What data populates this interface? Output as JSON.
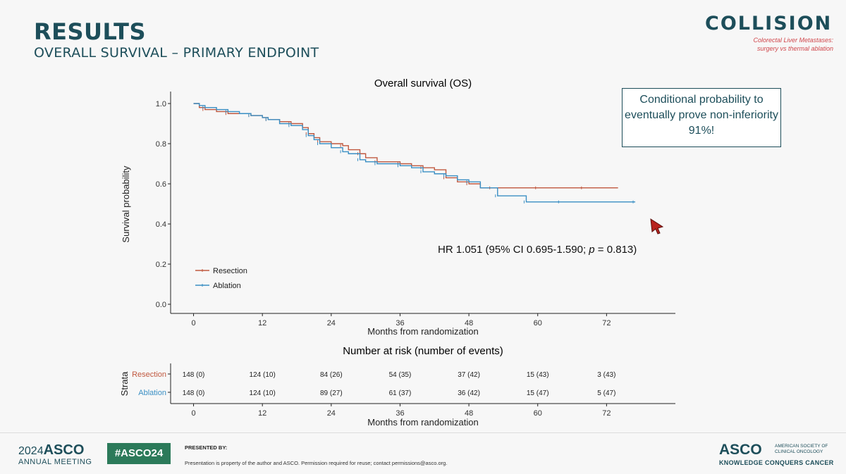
{
  "header": {
    "title": "RESULTS",
    "subtitle": "OVERALL SURVIVAL – PRIMARY ENDPOINT"
  },
  "logo": {
    "word": "COLLISION",
    "line1": "Colorectal Liver Metastases:",
    "line2": "surgery vs thermal ablation"
  },
  "callout": {
    "text": "Conditional probability to eventually prove non-inferiority 91%!"
  },
  "hr": {
    "prefix": "HR 1.051 (95% CI 0.695-1.590; ",
    "p_italic": "p",
    "suffix": " = 0.813)"
  },
  "footer": {
    "asco_year": "2024",
    "asco_word": "ASCO",
    "asco_sub": "ANNUAL MEETING",
    "hashtag": "#ASCO24",
    "presented_by": "PRESENTED BY:",
    "disclaimer": "Presentation is property of the author and ASCO. Permission required for reuse; contact permissions@asco.org.",
    "asco_right": "ASCO",
    "asco_right_sub1": "AMERICAN SOCIETY OF CLINICAL ONCOLOGY",
    "asco_right_sub2": "KNOWLEDGE CONQUERS CANCER"
  },
  "colors": {
    "resection": "#c0583f",
    "ablation": "#3a8fc4",
    "accent": "#1d4e5a"
  },
  "chart_data": [
    {
      "type": "line",
      "title": "Overall survival (OS)",
      "xlabel": "Months from randomization",
      "ylabel": "Survival probability",
      "xticks": [
        0,
        12,
        24,
        36,
        48,
        60,
        72
      ],
      "yticks": [
        "0.0",
        "0.2",
        "0.4",
        "0.6",
        "0.8",
        "1.0"
      ],
      "xlim": [
        -4,
        84
      ],
      "ylim": [
        0,
        1
      ],
      "legend_position": "bottom-left",
      "series": [
        {
          "name": "Resection",
          "color_key": "resection",
          "x": [
            0,
            1,
            2,
            4,
            6,
            8,
            10,
            12,
            13,
            15,
            17,
            19,
            20,
            21,
            22,
            24,
            26,
            27,
            29,
            30,
            32,
            34,
            36,
            38,
            40,
            42,
            44,
            46,
            48,
            50,
            52,
            56,
            60,
            64,
            68,
            74
          ],
          "y": [
            1.0,
            0.98,
            0.97,
            0.96,
            0.95,
            0.95,
            0.94,
            0.93,
            0.92,
            0.91,
            0.9,
            0.88,
            0.85,
            0.83,
            0.81,
            0.8,
            0.79,
            0.77,
            0.75,
            0.73,
            0.71,
            0.71,
            0.7,
            0.69,
            0.68,
            0.67,
            0.63,
            0.61,
            0.6,
            0.58,
            0.58,
            0.58,
            0.58,
            0.58,
            0.58,
            0.58
          ]
        },
        {
          "name": "Ablation",
          "color_key": "ablation",
          "x": [
            0,
            1,
            2,
            4,
            6,
            8,
            10,
            12,
            13,
            15,
            17,
            19,
            20,
            21,
            22,
            24,
            26,
            27,
            29,
            30,
            32,
            34,
            36,
            38,
            40,
            42,
            44,
            46,
            48,
            50,
            53,
            56,
            58,
            60,
            64,
            70,
            77
          ],
          "y": [
            1.0,
            0.99,
            0.98,
            0.97,
            0.96,
            0.95,
            0.94,
            0.93,
            0.92,
            0.9,
            0.89,
            0.87,
            0.84,
            0.82,
            0.8,
            0.78,
            0.76,
            0.75,
            0.72,
            0.71,
            0.7,
            0.7,
            0.69,
            0.68,
            0.66,
            0.65,
            0.64,
            0.62,
            0.61,
            0.58,
            0.54,
            0.54,
            0.51,
            0.51,
            0.51,
            0.51,
            0.51
          ]
        }
      ]
    },
    {
      "type": "table",
      "title": "Number at risk (number of events)",
      "xlabel": "Months from randomization",
      "ylabel": "Strata",
      "xticks": [
        0,
        12,
        24,
        36,
        48,
        60,
        72
      ],
      "rows": [
        {
          "name": "Resection",
          "color_key": "resection",
          "values": [
            "148 (0)",
            "124 (10)",
            "84 (26)",
            "54 (35)",
            "37 (42)",
            "15 (43)",
            "3 (43)"
          ]
        },
        {
          "name": "Ablation",
          "color_key": "ablation",
          "values": [
            "148 (0)",
            "124 (10)",
            "89 (27)",
            "61 (37)",
            "36 (42)",
            "15 (47)",
            "5 (47)"
          ]
        }
      ]
    }
  ]
}
